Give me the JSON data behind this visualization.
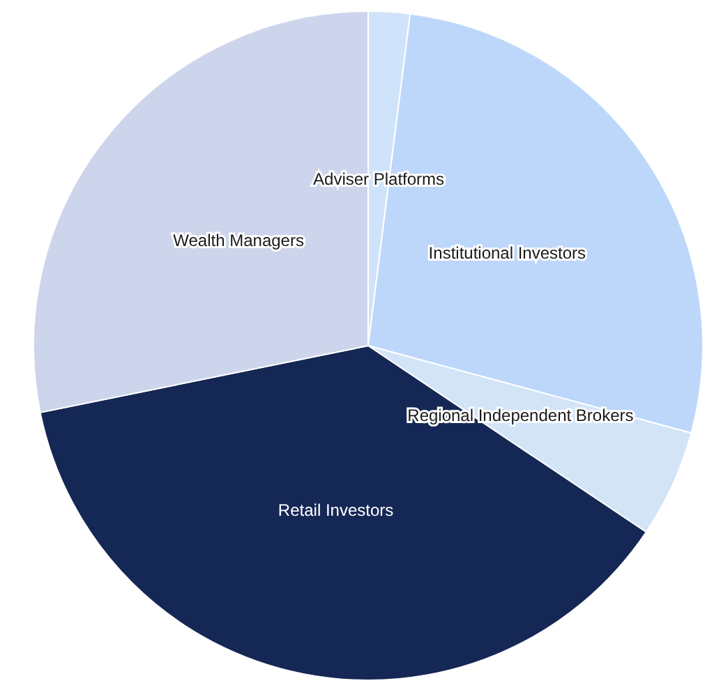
{
  "chart_data": {
    "type": "pie",
    "categories": [
      "Adviser Platforms",
      "Institutional Investors",
      "Regional Independent Brokers",
      "Retail Investors",
      "Wealth Managers"
    ],
    "values": [
      2,
      27.2,
      5.2,
      37.4,
      28.2
    ],
    "colors": [
      "#cfe3fa",
      "#bdd7fb",
      "#d3e4f7",
      "#152754",
      "#cdd5ec"
    ]
  }
}
